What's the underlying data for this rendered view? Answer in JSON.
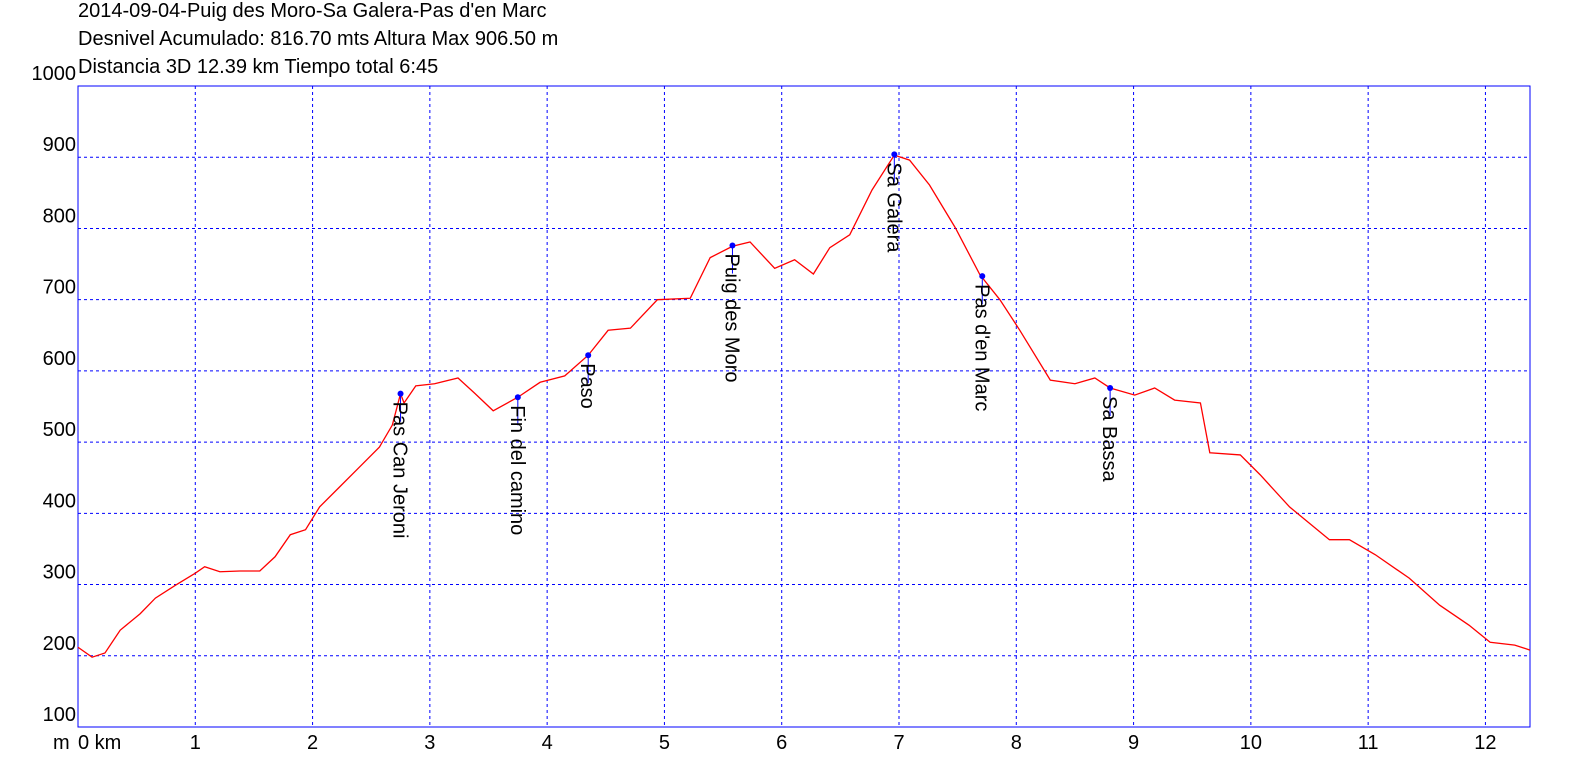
{
  "chart_data": {
    "type": "line",
    "title_lines": [
      "2014-09-04-Puig des Moro-Sa Galera-Pas d'en Marc",
      "Desnivel Acumulado: 816.70 mts  Altura Max 906.50 m",
      "Distancia 3D 12.39 km  Tiempo total 6:45"
    ],
    "y_label": "m",
    "color": "#ff0000",
    "grid_color": "#0000ff",
    "grid": true,
    "x": [
      0,
      0.12,
      0.23,
      0.36,
      0.53,
      0.66,
      0.83,
      1.0,
      1.08,
      1.21,
      1.38,
      1.55,
      1.68,
      1.81,
      1.94,
      2.06,
      2.23,
      2.4,
      2.57,
      2.68,
      2.75,
      2.78,
      2.88,
      3.04,
      3.24,
      3.38,
      3.54,
      3.75,
      3.94,
      4.15,
      4.35,
      4.52,
      4.71,
      4.94,
      5.22,
      5.39,
      5.58,
      5.73,
      5.94,
      6.11,
      6.27,
      6.41,
      6.58,
      6.77,
      6.96,
      7.09,
      7.26,
      7.48,
      7.69,
      7.86,
      8.03,
      8.29,
      8.5,
      8.67,
      8.8,
      9.01,
      9.18,
      9.35,
      9.57,
      9.65,
      9.91,
      10.08,
      10.33,
      10.67,
      10.84,
      11.06,
      11.35,
      11.61,
      11.86,
      12.04,
      12.25,
      12.38
    ],
    "values": [
      212,
      198,
      204,
      236,
      259,
      281,
      299,
      316,
      325,
      318,
      319,
      319,
      339,
      370,
      377,
      409,
      437,
      465,
      493,
      524,
      568,
      555,
      579,
      582,
      590,
      569,
      544,
      563,
      584,
      593,
      622,
      657,
      660,
      700,
      702,
      759,
      775,
      781,
      744,
      756,
      736,
      773,
      791,
      854,
      903,
      896,
      861,
      801,
      735,
      700,
      657,
      587,
      582,
      590,
      576,
      566,
      576,
      559,
      555,
      485,
      482,
      454,
      409,
      363,
      363,
      342,
      309,
      271,
      243,
      219,
      215,
      208
    ],
    "waypoints": [
      {
        "label": "Pas Can Jeroni",
        "x": 2.75,
        "y": 568
      },
      {
        "label": "Fin del camino",
        "x": 3.75,
        "y": 563
      },
      {
        "label": "Paso",
        "x": 4.35,
        "y": 622
      },
      {
        "label": "Puig des Moro",
        "x": 5.58,
        "y": 776
      },
      {
        "label": "Sa Galera",
        "x": 6.96,
        "y": 904
      },
      {
        "label": "Pas d'en Marc",
        "x": 7.71,
        "y": 733
      },
      {
        "label": "Sa Bassa",
        "x": 8.8,
        "y": 576
      }
    ],
    "marker_color": "#0000ff",
    "xlim": [
      0,
      12.38
    ],
    "ylim": [
      100,
      1000
    ],
    "xticks": [
      {
        "value": 0,
        "label": "0 km"
      },
      1,
      2,
      3,
      4,
      5,
      6,
      7,
      8,
      9,
      10,
      11,
      12
    ],
    "yticks": [
      100,
      200,
      300,
      400,
      500,
      600,
      700,
      800,
      900,
      1000
    ]
  }
}
